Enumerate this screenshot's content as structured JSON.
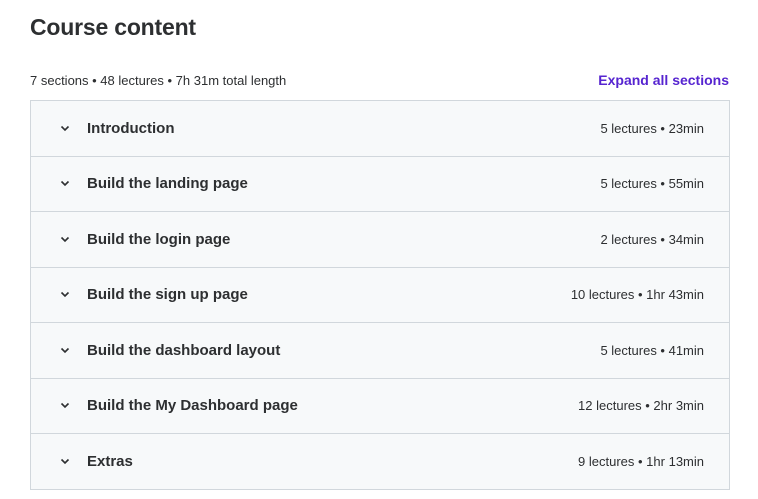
{
  "heading": "Course content",
  "summary": "7 sections • 48 lectures • 7h 31m total length",
  "expand_label": "Expand all sections",
  "accent_color": "#5624d0",
  "sections": [
    {
      "title": "Introduction",
      "info": "5 lectures • 23min",
      "icon": "chevron-down-icon"
    },
    {
      "title": "Build the landing page",
      "info": "5 lectures • 55min",
      "icon": "chevron-down-icon"
    },
    {
      "title": "Build the login page",
      "info": "2 lectures • 34min",
      "icon": "chevron-down-icon"
    },
    {
      "title": "Build the sign up page",
      "info": "10 lectures • 1hr 43min",
      "icon": "chevron-down-icon"
    },
    {
      "title": "Build the dashboard layout",
      "info": "5 lectures • 41min",
      "icon": "chevron-down-icon"
    },
    {
      "title": "Build the My Dashboard page",
      "info": "12 lectures • 2hr 3min",
      "icon": "chevron-down-icon"
    },
    {
      "title": "Extras",
      "info": "9 lectures • 1hr 13min",
      "icon": "chevron-down-icon"
    }
  ]
}
